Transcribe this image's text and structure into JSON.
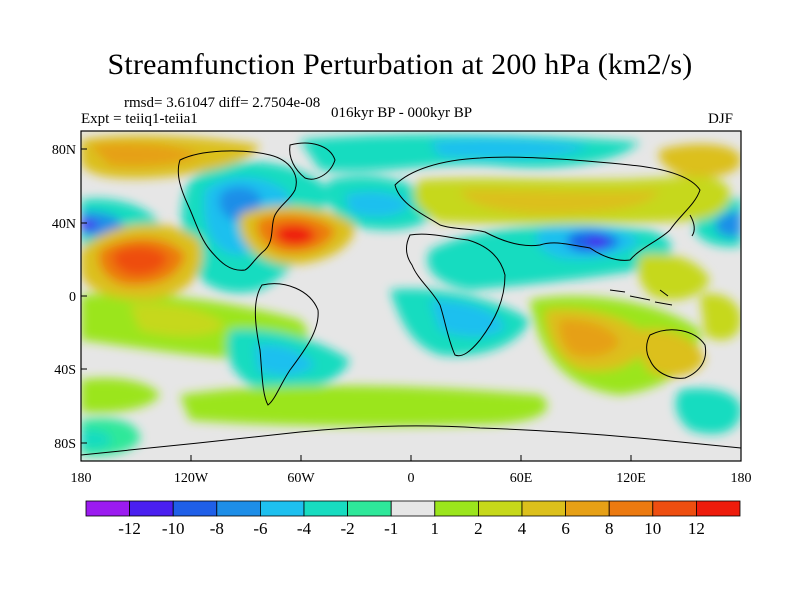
{
  "title": "Streamfunction Perturbation at 200 hPa (km2/s)",
  "stats": "rmsd= 3.61047 diff= 2.7504e-08",
  "experiment": "Expt = teiiq1-teiia1",
  "period": "016kyr BP - 000kyr BP",
  "season": "DJF",
  "axes": {
    "x_ticks": [
      "180",
      "120W",
      "60W",
      "0",
      "60E",
      "120E",
      "180"
    ],
    "y_ticks": [
      "80N",
      "40N",
      "0",
      "40S",
      "80S"
    ]
  },
  "colorbar": {
    "colors": [
      "#9b1bf0",
      "#4a1ff0",
      "#1f5fe8",
      "#1e8ee8",
      "#1ec0ef",
      "#17dcc0",
      "#2ee89a",
      "#e6e6e6",
      "#9be51c",
      "#c6d81a",
      "#dcc01c",
      "#e6a016",
      "#ec7a10",
      "#ee4e10",
      "#ee1c0c"
    ],
    "labels": [
      "-12",
      "-10",
      "-8",
      "-6",
      "-4",
      "-2",
      "-1",
      "1",
      "2",
      "4",
      "6",
      "8",
      "10",
      "12"
    ]
  }
}
